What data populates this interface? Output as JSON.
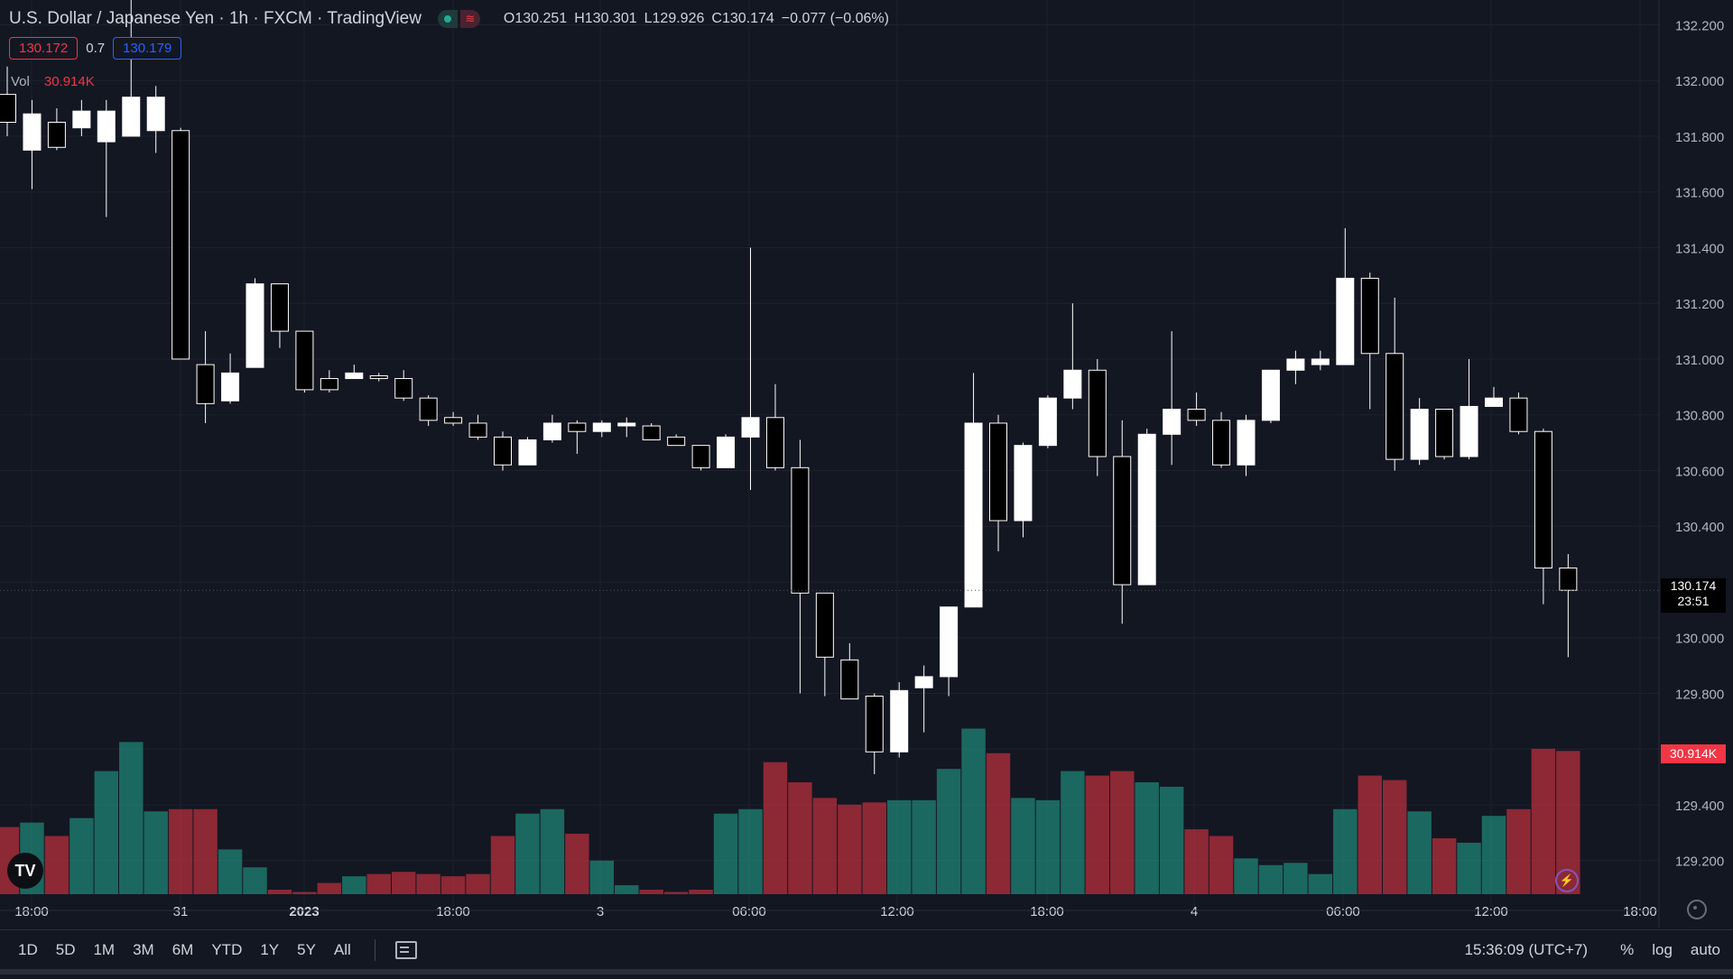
{
  "header": {
    "symbol_title": "U.S. Dollar / Japanese Yen · 1h · FXCM · TradingView",
    "ohlc": {
      "open_label": "O",
      "open": "130.251",
      "high_label": "H",
      "high": "130.301",
      "low_label": "L",
      "low": "129.926",
      "close_label": "C",
      "close": "130.174",
      "change": "−0.077 (−0.06%)"
    },
    "sell_price": "130.172",
    "spread": "0.7",
    "buy_price": "130.179",
    "volume_label": "Vol",
    "volume_value": "30.914K"
  },
  "price_tag": {
    "price": "130.174",
    "countdown": "23:51"
  },
  "volume_tag": "30.914K",
  "price_axis_labels": [
    "132.200",
    "132.000",
    "131.800",
    "131.600",
    "131.400",
    "131.200",
    "131.000",
    "130.800",
    "130.600",
    "130.400",
    "130.200",
    "130.000",
    "129.800",
    "129.600",
    "129.400",
    "129.200"
  ],
  "time_axis_labels": [
    "18:00",
    "31",
    "2023",
    "18:00",
    "3",
    "06:00",
    "12:00",
    "18:00",
    "4",
    "06:00",
    "12:00",
    "18:00"
  ],
  "bottom_bar": {
    "ranges": [
      "1D",
      "5D",
      "1M",
      "3M",
      "6M",
      "YTD",
      "1Y",
      "5Y",
      "All"
    ],
    "clock": "15:36:09 (UTC+7)",
    "percent_label": "%",
    "log_label": "log",
    "auto_label": "auto"
  },
  "icons": {
    "logo": "tradingview-logo-icon",
    "bolt": "lightning-icon",
    "calendar": "calendar-range-icon",
    "settings": "gear-icon"
  },
  "colors": {
    "background": "#131722",
    "up_candle": "#ffffff",
    "down_candle": "#000000",
    "up_volume": "#22ab94",
    "down_volume": "#f23645",
    "buy": "#2962ff",
    "sell": "#f23645"
  },
  "chart_data": {
    "type": "candlestick",
    "price_range": [
      129.05,
      132.25
    ],
    "volume_max": 100,
    "candles": [
      {
        "o": 131.95,
        "h": 132.05,
        "l": 131.8,
        "c": 131.85,
        "v": 30
      },
      {
        "o": 131.75,
        "h": 131.93,
        "l": 131.61,
        "c": 131.88,
        "v": 32
      },
      {
        "o": 131.85,
        "h": 131.9,
        "l": 131.75,
        "c": 131.76,
        "v": 26
      },
      {
        "o": 131.83,
        "h": 131.93,
        "l": 131.8,
        "c": 131.89,
        "v": 34
      },
      {
        "o": 131.78,
        "h": 131.93,
        "l": 131.51,
        "c": 131.89,
        "v": 55
      },
      {
        "o": 131.8,
        "h": 132.3,
        "l": 131.8,
        "c": 131.94,
        "v": 68
      },
      {
        "o": 131.82,
        "h": 131.98,
        "l": 131.74,
        "c": 131.94,
        "v": 37
      },
      {
        "o": 131.82,
        "h": 131.83,
        "l": 131.0,
        "c": 131.0,
        "v": 38
      },
      {
        "o": 130.98,
        "h": 131.1,
        "l": 130.77,
        "c": 130.84,
        "v": 38
      },
      {
        "o": 130.85,
        "h": 131.02,
        "l": 130.84,
        "c": 130.95,
        "v": 20
      },
      {
        "o": 130.97,
        "h": 131.29,
        "l": 130.97,
        "c": 131.27,
        "v": 12
      },
      {
        "o": 131.27,
        "h": 131.27,
        "l": 131.04,
        "c": 131.1,
        "v": 2
      },
      {
        "o": 131.1,
        "h": 131.1,
        "l": 130.88,
        "c": 130.89,
        "v": 1
      },
      {
        "o": 130.93,
        "h": 130.96,
        "l": 130.88,
        "c": 130.89,
        "v": 5
      },
      {
        "o": 130.93,
        "h": 130.98,
        "l": 130.93,
        "c": 130.95,
        "v": 8
      },
      {
        "o": 130.94,
        "h": 130.95,
        "l": 130.92,
        "c": 130.93,
        "v": 9
      },
      {
        "o": 130.93,
        "h": 130.96,
        "l": 130.85,
        "c": 130.86,
        "v": 10
      },
      {
        "o": 130.86,
        "h": 130.87,
        "l": 130.76,
        "c": 130.78,
        "v": 9
      },
      {
        "o": 130.79,
        "h": 130.81,
        "l": 130.76,
        "c": 130.77,
        "v": 8
      },
      {
        "o": 130.77,
        "h": 130.8,
        "l": 130.71,
        "c": 130.72,
        "v": 9
      },
      {
        "o": 130.72,
        "h": 130.74,
        "l": 130.6,
        "c": 130.62,
        "v": 26
      },
      {
        "o": 130.62,
        "h": 130.72,
        "l": 130.62,
        "c": 130.71,
        "v": 36
      },
      {
        "o": 130.71,
        "h": 130.8,
        "l": 130.7,
        "c": 130.77,
        "v": 38
      },
      {
        "o": 130.77,
        "h": 130.78,
        "l": 130.66,
        "c": 130.74,
        "v": 27
      },
      {
        "o": 130.74,
        "h": 130.78,
        "l": 130.72,
        "c": 130.77,
        "v": 15
      },
      {
        "o": 130.76,
        "h": 130.79,
        "l": 130.72,
        "c": 130.77,
        "v": 4
      },
      {
        "o": 130.76,
        "h": 130.77,
        "l": 130.71,
        "c": 130.71,
        "v": 2
      },
      {
        "o": 130.72,
        "h": 130.73,
        "l": 130.69,
        "c": 130.69,
        "v": 1
      },
      {
        "o": 130.69,
        "h": 130.69,
        "l": 130.6,
        "c": 130.61,
        "v": 2
      },
      {
        "o": 130.61,
        "h": 130.73,
        "l": 130.61,
        "c": 130.72,
        "v": 36
      },
      {
        "o": 130.72,
        "h": 131.4,
        "l": 130.53,
        "c": 130.79,
        "v": 38
      },
      {
        "o": 130.79,
        "h": 130.91,
        "l": 130.6,
        "c": 130.61,
        "v": 59
      },
      {
        "o": 130.61,
        "h": 130.71,
        "l": 129.8,
        "c": 130.16,
        "v": 50
      },
      {
        "o": 130.16,
        "h": 130.16,
        "l": 129.79,
        "c": 129.93,
        "v": 43
      },
      {
        "o": 129.92,
        "h": 129.98,
        "l": 129.78,
        "c": 129.78,
        "v": 40
      },
      {
        "o": 129.79,
        "h": 129.8,
        "l": 129.51,
        "c": 129.59,
        "v": 41
      },
      {
        "o": 129.59,
        "h": 129.84,
        "l": 129.57,
        "c": 129.81,
        "v": 42
      },
      {
        "o": 129.82,
        "h": 129.9,
        "l": 129.66,
        "c": 129.86,
        "v": 42
      },
      {
        "o": 129.86,
        "h": 130.11,
        "l": 129.79,
        "c": 130.11,
        "v": 56
      },
      {
        "o": 130.11,
        "h": 130.95,
        "l": 130.11,
        "c": 130.77,
        "v": 74
      },
      {
        "o": 130.77,
        "h": 130.8,
        "l": 130.31,
        "c": 130.42,
        "v": 63
      },
      {
        "o": 130.42,
        "h": 130.7,
        "l": 130.36,
        "c": 130.69,
        "v": 43
      },
      {
        "o": 130.69,
        "h": 130.87,
        "l": 130.68,
        "c": 130.86,
        "v": 42
      },
      {
        "o": 130.86,
        "h": 131.2,
        "l": 130.82,
        "c": 130.96,
        "v": 55
      },
      {
        "o": 130.96,
        "h": 131.0,
        "l": 130.58,
        "c": 130.65,
        "v": 53
      },
      {
        "o": 130.65,
        "h": 130.78,
        "l": 130.05,
        "c": 130.19,
        "v": 55
      },
      {
        "o": 130.19,
        "h": 130.75,
        "l": 130.19,
        "c": 130.73,
        "v": 50
      },
      {
        "o": 130.73,
        "h": 131.1,
        "l": 130.62,
        "c": 130.82,
        "v": 48
      },
      {
        "o": 130.82,
        "h": 130.88,
        "l": 130.76,
        "c": 130.78,
        "v": 29
      },
      {
        "o": 130.78,
        "h": 130.81,
        "l": 130.61,
        "c": 130.62,
        "v": 26
      },
      {
        "o": 130.62,
        "h": 130.8,
        "l": 130.58,
        "c": 130.78,
        "v": 16
      },
      {
        "o": 130.78,
        "h": 130.96,
        "l": 130.77,
        "c": 130.96,
        "v": 13
      },
      {
        "o": 130.96,
        "h": 131.03,
        "l": 130.91,
        "c": 131.0,
        "v": 14
      },
      {
        "o": 130.98,
        "h": 131.03,
        "l": 130.96,
        "c": 131.0,
        "v": 9
      },
      {
        "o": 130.98,
        "h": 131.47,
        "l": 130.98,
        "c": 131.29,
        "v": 38
      },
      {
        "o": 131.29,
        "h": 131.31,
        "l": 130.82,
        "c": 131.02,
        "v": 53
      },
      {
        "o": 131.02,
        "h": 131.22,
        "l": 130.6,
        "c": 130.64,
        "v": 51
      },
      {
        "o": 130.64,
        "h": 130.86,
        "l": 130.62,
        "c": 130.82,
        "v": 37
      },
      {
        "o": 130.82,
        "h": 130.82,
        "l": 130.64,
        "c": 130.65,
        "v": 25
      },
      {
        "o": 130.65,
        "h": 131.0,
        "l": 130.64,
        "c": 130.83,
        "v": 23
      },
      {
        "o": 130.83,
        "h": 130.9,
        "l": 130.84,
        "c": 130.86,
        "v": 35
      },
      {
        "o": 130.86,
        "h": 130.88,
        "l": 130.73,
        "c": 130.74,
        "v": 38
      },
      {
        "o": 130.74,
        "h": 130.75,
        "l": 130.12,
        "c": 130.25,
        "v": 65
      },
      {
        "o": 130.25,
        "h": 130.3,
        "l": 129.93,
        "c": 130.17,
        "v": 64
      }
    ]
  }
}
